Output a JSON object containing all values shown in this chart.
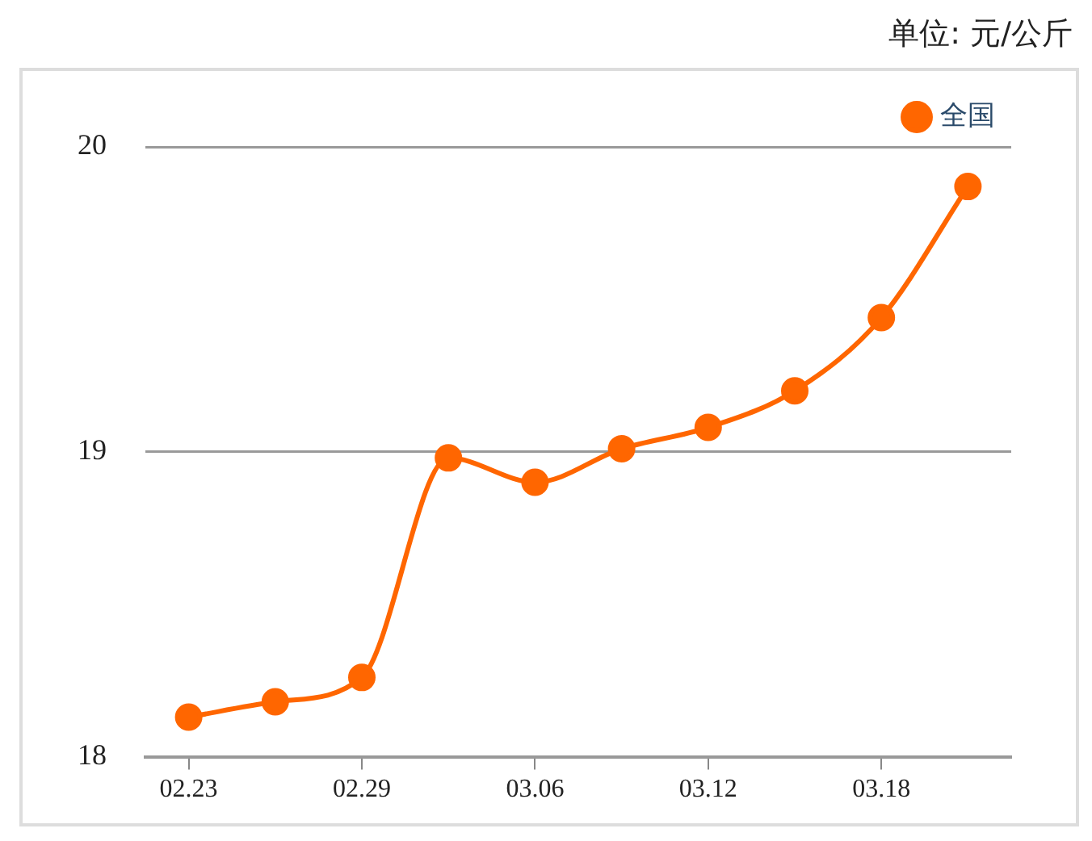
{
  "chart_data": {
    "type": "line",
    "annotations": [
      "单位: 元/公斤"
    ],
    "categories": [
      "02.23",
      null,
      "02.29",
      null,
      "03.06",
      null,
      "03.12",
      null,
      "03.18",
      null
    ],
    "series": [
      {
        "name": "全国",
        "color": "#ff6600",
        "values": [
          18.13,
          18.18,
          18.26,
          18.98,
          18.9,
          19.01,
          19.08,
          19.2,
          19.44,
          19.87
        ]
      }
    ],
    "ylim": [
      18,
      20
    ],
    "yticks": [
      18,
      19,
      20
    ],
    "grid": "y",
    "legend": "top right",
    "marker": "circle",
    "line_style": "solid"
  }
}
